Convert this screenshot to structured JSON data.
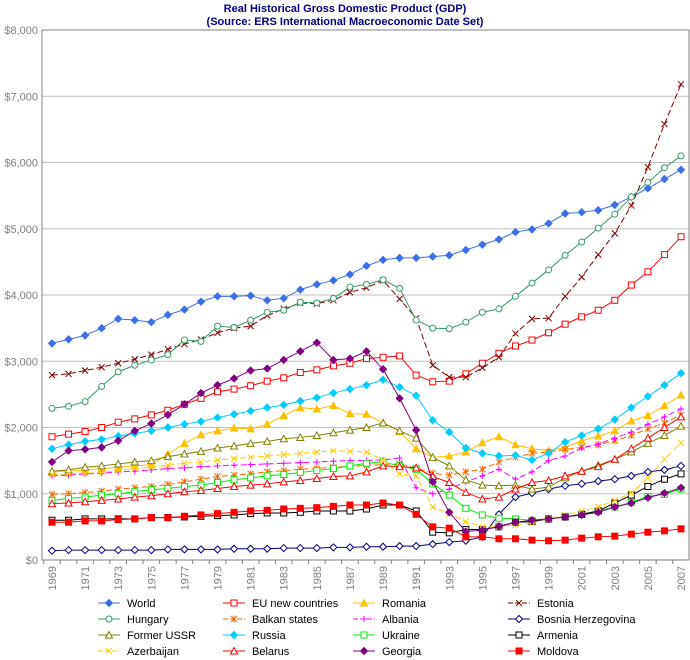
{
  "chart_data": {
    "type": "line",
    "title": "Real Historical Gross Domestic Product (GDP)",
    "subtitle": "(Source: ERS International Macroeconomic Date Set)",
    "xlabel": "",
    "ylabel": "",
    "ylim": [
      0,
      8000
    ],
    "yticks": [
      "$0",
      "$1,000",
      "$2,000",
      "$3,000",
      "$4,000",
      "$5,000",
      "$6,000",
      "$7,000",
      "$8,000"
    ],
    "x": [
      1969,
      1970,
      1971,
      1972,
      1973,
      1974,
      1975,
      1976,
      1977,
      1978,
      1979,
      1980,
      1981,
      1982,
      1983,
      1984,
      1985,
      1986,
      1987,
      1988,
      1989,
      1990,
      1991,
      1992,
      1993,
      1994,
      1995,
      1996,
      1997,
      1998,
      1999,
      2000,
      2001,
      2002,
      2003,
      2004,
      2005,
      2006,
      2007
    ],
    "xticks": [
      "1969",
      "1971",
      "1973",
      "1975",
      "1977",
      "1979",
      "1981",
      "1983",
      "1985",
      "1987",
      "1989",
      "1991",
      "1993",
      "1995",
      "1997",
      "1999",
      "2001",
      "2003",
      "2005",
      "2007"
    ],
    "grid": "horizontal",
    "legend": "bottom",
    "series": [
      {
        "name": "World",
        "color": "#3d6ee8",
        "marker": "diamond-filled",
        "dash": false,
        "values": [
          3270,
          3330,
          3390,
          3500,
          3640,
          3620,
          3590,
          3700,
          3780,
          3900,
          3980,
          3980,
          3990,
          3920,
          3950,
          4080,
          4160,
          4220,
          4310,
          4440,
          4530,
          4560,
          4560,
          4580,
          4600,
          4680,
          4760,
          4840,
          4950,
          4990,
          5080,
          5230,
          5250,
          5280,
          5360,
          5480,
          5610,
          5750,
          5890
        ]
      },
      {
        "name": "EU new countries",
        "color": "#ff0000",
        "marker": "square-open",
        "dash": false,
        "values": [
          1860,
          1900,
          1940,
          2000,
          2080,
          2130,
          2190,
          2260,
          2350,
          2440,
          2540,
          2580,
          2630,
          2700,
          2750,
          2830,
          2870,
          2930,
          2970,
          3040,
          3060,
          3080,
          2790,
          2690,
          2700,
          2810,
          2970,
          3120,
          3230,
          3320,
          3430,
          3560,
          3670,
          3770,
          3920,
          4150,
          4350,
          4610,
          4880
        ]
      },
      {
        "name": "Romania",
        "color": "#ffc000",
        "marker": "triangle-filled",
        "dash": false,
        "values": [
          1330,
          1340,
          1360,
          1380,
          1400,
          1420,
          1440,
          1600,
          1760,
          1890,
          1950,
          1990,
          1980,
          2050,
          2180,
          2300,
          2280,
          2330,
          2210,
          2200,
          2070,
          1940,
          1680,
          1550,
          1570,
          1630,
          1770,
          1860,
          1740,
          1680,
          1650,
          1700,
          1800,
          1870,
          1950,
          2100,
          2180,
          2330,
          2490
        ]
      },
      {
        "name": "Estonia",
        "color": "#800000",
        "marker": "x",
        "dash": true,
        "values": [
          2790,
          2810,
          2860,
          2910,
          2970,
          3030,
          3100,
          3180,
          3260,
          3330,
          3430,
          3500,
          3530,
          3690,
          3790,
          3880,
          3870,
          3920,
          4040,
          4110,
          4220,
          3940,
          3650,
          2940,
          2760,
          2760,
          2900,
          3060,
          3420,
          3640,
          3650,
          3980,
          4270,
          4610,
          4930,
          5350,
          5930,
          6580,
          7180
        ]
      },
      {
        "name": "Hungary",
        "color": "#339966",
        "marker": "circle-open",
        "dash": false,
        "values": [
          2290,
          2320,
          2390,
          2620,
          2840,
          2940,
          3020,
          3100,
          3320,
          3300,
          3530,
          3510,
          3620,
          3740,
          3770,
          3890,
          3880,
          3950,
          4120,
          4160,
          4230,
          4100,
          3620,
          3500,
          3490,
          3590,
          3740,
          3790,
          3980,
          4180,
          4380,
          4600,
          4800,
          5010,
          5220,
          5480,
          5700,
          5920,
          6100
        ]
      },
      {
        "name": "Balkan states",
        "color": "#ff6600",
        "marker": "asterisk",
        "dash": true,
        "values": [
          990,
          1000,
          1020,
          1040,
          1070,
          1090,
          1110,
          1140,
          1180,
          1220,
          1260,
          1280,
          1300,
          1330,
          1350,
          1370,
          1380,
          1400,
          1410,
          1430,
          1440,
          1450,
          1390,
          1310,
          1280,
          1330,
          1370,
          1480,
          1550,
          1610,
          1630,
          1670,
          1700,
          1740,
          1800,
          1880,
          1980,
          2070,
          2190
        ]
      },
      {
        "name": "Albania",
        "color": "#ff00ff",
        "marker": "plus",
        "dash": true,
        "values": [
          1270,
          1280,
          1300,
          1310,
          1330,
          1340,
          1360,
          1380,
          1390,
          1410,
          1420,
          1430,
          1440,
          1450,
          1460,
          1470,
          1480,
          1490,
          1500,
          1500,
          1510,
          1540,
          1090,
          1000,
          1070,
          1180,
          1270,
          1370,
          1220,
          1330,
          1500,
          1570,
          1690,
          1750,
          1840,
          1930,
          2050,
          2160,
          2280
        ]
      },
      {
        "name": "Bosnia Herzegovina",
        "color": "#000080",
        "marker": "diamond-open",
        "dash": false,
        "values": [
          140,
          150,
          150,
          150,
          150,
          150,
          150,
          160,
          160,
          160,
          160,
          170,
          170,
          170,
          180,
          180,
          180,
          190,
          190,
          200,
          200,
          210,
          210,
          240,
          270,
          290,
          350,
          690,
          950,
          1010,
          1070,
          1120,
          1150,
          1190,
          1220,
          1270,
          1330,
          1360,
          1420
        ]
      },
      {
        "name": "Former USSR",
        "color": "#808000",
        "marker": "triangle-open",
        "dash": false,
        "values": [
          1340,
          1360,
          1400,
          1420,
          1450,
          1480,
          1500,
          1560,
          1600,
          1640,
          1690,
          1720,
          1760,
          1790,
          1830,
          1850,
          1880,
          1920,
          1960,
          2000,
          2070,
          1950,
          1840,
          1550,
          1420,
          1210,
          1130,
          1120,
          1130,
          1070,
          1100,
          1240,
          1340,
          1430,
          1520,
          1630,
          1760,
          1880,
          2020
        ]
      },
      {
        "name": "Russia",
        "color": "#00ccff",
        "marker": "diamond-filled",
        "dash": false,
        "values": [
          1680,
          1740,
          1790,
          1820,
          1870,
          1910,
          1950,
          2000,
          2050,
          2090,
          2150,
          2200,
          2250,
          2300,
          2340,
          2400,
          2450,
          2520,
          2580,
          2640,
          2720,
          2610,
          2480,
          2110,
          1930,
          1690,
          1610,
          1570,
          1580,
          1510,
          1610,
          1780,
          1880,
          1980,
          2120,
          2300,
          2470,
          2640,
          2820
        ]
      },
      {
        "name": "Ukraine",
        "color": "#00ee00",
        "marker": "square-open",
        "dash": false,
        "values": [
          900,
          930,
          950,
          980,
          1000,
          1030,
          1060,
          1080,
          1110,
          1130,
          1170,
          1210,
          1240,
          1270,
          1290,
          1320,
          1350,
          1380,
          1420,
          1460,
          1480,
          1420,
          1370,
          1150,
          980,
          780,
          680,
          630,
          620,
          600,
          620,
          650,
          690,
          740,
          800,
          870,
          960,
          990,
          1070
        ]
      },
      {
        "name": "Armenia",
        "color": "#000000",
        "marker": "square-open",
        "dash": false,
        "values": [
          600,
          600,
          620,
          620,
          620,
          620,
          640,
          640,
          650,
          660,
          670,
          680,
          700,
          710,
          710,
          720,
          740,
          740,
          740,
          770,
          830,
          830,
          740,
          420,
          410,
          460,
          460,
          500,
          570,
          580,
          620,
          650,
          690,
          740,
          860,
          980,
          1110,
          1220,
          1300
        ]
      },
      {
        "name": "Azerbaijan",
        "color": "#ffcc00",
        "marker": "x",
        "dash": true,
        "values": [
          1290,
          1300,
          1310,
          1320,
          1350,
          1380,
          1400,
          1430,
          1460,
          1480,
          1510,
          1530,
          1550,
          1570,
          1590,
          1610,
          1630,
          1650,
          1640,
          1630,
          1510,
          1300,
          1270,
          800,
          700,
          580,
          500,
          500,
          530,
          560,
          620,
          680,
          740,
          800,
          900,
          1010,
          1240,
          1520,
          1770
        ]
      },
      {
        "name": "Belarus",
        "color": "#ff0000",
        "marker": "triangle-open",
        "dash": false,
        "values": [
          850,
          860,
          880,
          900,
          920,
          950,
          970,
          1000,
          1030,
          1050,
          1080,
          1110,
          1130,
          1150,
          1180,
          1200,
          1230,
          1260,
          1270,
          1330,
          1420,
          1410,
          1390,
          1260,
          1170,
          1020,
          920,
          950,
          1070,
          1170,
          1200,
          1270,
          1340,
          1410,
          1520,
          1680,
          1840,
          2000,
          2160
        ]
      },
      {
        "name": "Georgia",
        "color": "#800080",
        "marker": "diamond-filled",
        "dash": false,
        "values": [
          1480,
          1650,
          1670,
          1700,
          1800,
          1950,
          2060,
          2190,
          2350,
          2520,
          2640,
          2740,
          2860,
          2890,
          3020,
          3150,
          3280,
          3020,
          3040,
          3150,
          2880,
          2440,
          1960,
          1180,
          720,
          430,
          450,
          510,
          570,
          600,
          620,
          650,
          680,
          720,
          800,
          860,
          940,
          1010,
          1090
        ]
      },
      {
        "name": "Moldova",
        "color": "#ff0000",
        "marker": "square-filled",
        "dash": false,
        "values": [
          570,
          570,
          590,
          590,
          610,
          620,
          640,
          640,
          660,
          680,
          700,
          720,
          740,
          750,
          770,
          780,
          790,
          810,
          830,
          830,
          860,
          830,
          690,
          500,
          480,
          350,
          350,
          320,
          320,
          300,
          290,
          300,
          330,
          350,
          360,
          390,
          420,
          440,
          470
        ]
      }
    ]
  }
}
